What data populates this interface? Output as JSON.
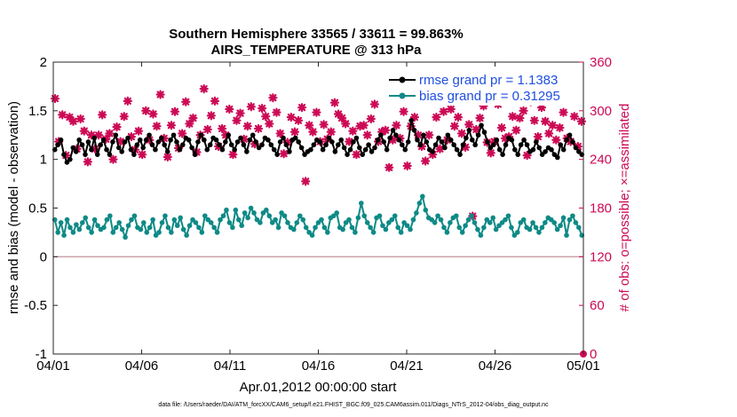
{
  "chart_data": {
    "type": "line",
    "title_line1": "Southern Hemisphere 33565 / 33611 = 99.863%",
    "title_line2": "AIRS_TEMPERATURE @ 313 hPa",
    "xlabel": "Apr.01,2012 00:00:00 start",
    "ylabel_left": "rmse and bias (model - observation)",
    "ylabel_right": "# of obs: o=possible; ×=assimilated",
    "footer": "data file: /Users/raeder/DAI/ATM_forcXX/CAM6_setup/f.e21.FHIST_BGC.f09_025.CAM6assim.011/Diags_NTrS_2012-04/obs_diag_output.nc",
    "xlim": [
      0,
      30
    ],
    "ylim_left": [
      -1,
      2
    ],
    "ylim_right": [
      0,
      360
    ],
    "x_ticks": [
      0,
      5,
      10,
      15,
      20,
      25,
      30
    ],
    "x_tick_labels": [
      "04/01",
      "04/06",
      "04/11",
      "04/16",
      "04/21",
      "04/26",
      "05/01"
    ],
    "y_ticks_left": [
      -1,
      -0.5,
      0,
      0.5,
      1,
      1.5,
      2
    ],
    "y_tick_labels_left": [
      "-1",
      "-0.5",
      "0",
      "0.5",
      "1",
      "1.5",
      "2"
    ],
    "y_ticks_right": [
      0,
      60,
      120,
      180,
      240,
      300,
      360
    ],
    "y_tick_labels_right": [
      "0",
      "60",
      "120",
      "180",
      "240",
      "300",
      "360"
    ],
    "zero_line": 0,
    "legend": [
      {
        "label": "rmse grand pr = 1.1383",
        "color": "#000000"
      },
      {
        "label": "bias grand pr = 0.31295",
        "color": "#0e8a86"
      }
    ],
    "colors": {
      "rmse": "#000000",
      "bias": "#0e8a86",
      "obs": "#cc0a55",
      "zero_line": "#c8a0a8"
    },
    "series": [
      {
        "name": "rmse",
        "values": [
          1.1,
          1.15,
          1.2,
          1.05,
          0.97,
          1.0,
          1.12,
          1.08,
          1.2,
          1.15,
          1.05,
          1.18,
          1.1,
          1.22,
          1.05,
          1.15,
          1.2,
          1.1,
          1.05,
          1.18,
          1.25,
          1.12,
          1.08,
          1.18,
          1.22,
          1.1,
          1.05,
          1.15,
          1.2,
          1.12,
          1.2,
          1.25,
          1.15,
          1.1,
          1.18,
          1.22,
          1.15,
          1.08,
          1.2,
          1.25,
          1.18,
          1.1,
          1.15,
          1.22,
          1.2,
          1.12,
          1.05,
          1.18,
          1.25,
          1.2,
          1.1,
          1.15,
          1.22,
          1.2,
          1.15,
          1.1,
          1.18,
          1.25,
          1.15,
          1.1,
          1.18,
          1.22,
          1.15,
          1.08,
          1.2,
          1.25,
          1.18,
          1.12,
          1.15,
          1.22,
          1.2,
          1.15,
          1.1,
          1.05,
          1.18,
          1.22,
          1.15,
          1.08,
          1.2,
          1.22,
          1.18,
          1.12,
          1.05,
          1.08,
          1.1,
          1.15,
          1.2,
          1.18,
          1.1,
          1.15,
          1.22,
          1.18,
          1.08,
          1.15,
          1.2,
          1.12,
          1.05,
          1.1,
          1.18,
          1.22,
          1.12,
          1.05,
          1.1,
          1.15,
          1.08,
          1.12,
          1.2,
          1.25,
          1.18,
          1.1,
          1.22,
          1.3,
          1.25,
          1.2,
          1.15,
          1.1,
          1.18,
          1.4,
          1.3,
          1.2,
          1.15,
          1.25,
          1.18,
          1.1,
          1.08,
          1.15,
          1.22,
          1.18,
          1.12,
          1.25,
          1.2,
          1.15,
          1.1,
          1.05,
          1.15,
          1.22,
          1.3,
          1.2,
          1.15,
          1.25,
          1.35,
          1.28,
          1.18,
          1.12,
          1.15,
          1.2,
          1.1,
          1.05,
          1.15,
          1.22,
          1.2,
          1.1,
          1.05,
          1.15,
          1.2,
          1.15,
          1.08,
          1.1,
          1.18,
          1.12,
          1.05,
          1.08,
          1.12,
          1.1,
          1.05,
          1.02,
          1.15,
          1.1,
          1.2,
          1.25,
          1.18,
          1.12,
          1.08,
          1.05
        ]
      },
      {
        "name": "bias",
        "values": [
          0.38,
          0.25,
          0.35,
          0.22,
          0.38,
          0.3,
          0.25,
          0.33,
          0.28,
          0.35,
          0.4,
          0.3,
          0.25,
          0.38,
          0.32,
          0.28,
          0.3,
          0.38,
          0.42,
          0.25,
          0.3,
          0.35,
          0.28,
          0.2,
          0.32,
          0.38,
          0.42,
          0.3,
          0.28,
          0.35,
          0.25,
          0.3,
          0.38,
          0.22,
          0.25,
          0.35,
          0.42,
          0.3,
          0.25,
          0.38,
          0.32,
          0.4,
          0.28,
          0.22,
          0.32,
          0.38,
          0.35,
          0.3,
          0.25,
          0.42,
          0.38,
          0.35,
          0.3,
          0.25,
          0.38,
          0.42,
          0.48,
          0.35,
          0.3,
          0.48,
          0.38,
          0.32,
          0.45,
          0.4,
          0.5,
          0.45,
          0.38,
          0.35,
          0.45,
          0.48,
          0.42,
          0.35,
          0.38,
          0.3,
          0.45,
          0.42,
          0.35,
          0.3,
          0.28,
          0.35,
          0.42,
          0.38,
          0.3,
          0.25,
          0.22,
          0.3,
          0.35,
          0.38,
          0.3,
          0.25,
          0.4,
          0.42,
          0.45,
          0.3,
          0.28,
          0.35,
          0.38,
          0.3,
          0.25,
          0.4,
          0.55,
          0.42,
          0.35,
          0.3,
          0.25,
          0.4,
          0.42,
          0.32,
          0.28,
          0.35,
          0.38,
          0.42,
          0.3,
          0.25,
          0.35,
          0.32,
          0.28,
          0.38,
          0.45,
          0.55,
          0.62,
          0.48,
          0.4,
          0.38,
          0.35,
          0.42,
          0.38,
          0.3,
          0.25,
          0.35,
          0.4,
          0.42,
          0.3,
          0.25,
          0.32,
          0.38,
          0.42,
          0.35,
          0.28,
          0.22,
          0.3,
          0.38,
          0.35,
          0.4,
          0.28,
          0.32,
          0.35,
          0.38,
          0.42,
          0.3,
          0.22,
          0.25,
          0.35,
          0.38,
          0.3,
          0.28,
          0.35,
          0.3,
          0.25,
          0.3,
          0.35,
          0.4,
          0.38,
          0.35,
          0.28,
          0.32,
          0.4,
          0.22,
          0.38,
          0.42,
          0.35,
          0.3,
          0.22
        ]
      },
      {
        "name": "obs_possible",
        "axis": "right",
        "values": [
          315,
          262,
          295,
          245,
          292,
          287,
          253,
          290,
          275,
          237,
          270,
          253,
          270,
          295,
          265,
          272,
          240,
          280,
          262,
          293,
          312,
          268,
          252,
          275,
          246,
          300,
          264,
          296,
          281,
          320,
          266,
          243,
          282,
          299,
          254,
          272,
          311,
          284,
          291,
          249,
          270,
          327,
          277,
          294,
          312,
          256,
          278,
          270,
          302,
          246,
          288,
          297,
          265,
          281,
          305,
          259,
          278,
          303,
          293,
          284,
          316,
          298,
          272,
          247,
          261,
          292,
          274,
          288,
          304,
          213,
          282,
          274,
          298,
          262,
          283,
          265,
          274,
          310,
          296,
          291,
          284,
          262,
          275,
          246,
          281,
          282,
          270,
          290,
          308,
          262,
          274,
          276,
          230,
          264,
          282,
          266,
          299,
          232,
          281,
          292,
          270,
          256,
          238,
          270,
          246,
          292,
          253,
          299,
          264,
          302,
          281,
          292,
          272,
          255,
          283,
          170,
          277,
          291,
          306,
          261,
          248,
          262,
          308,
          279,
          266,
          268,
          293,
          276,
          291,
          300,
          245,
          311,
          288,
          268,
          304,
          287,
          272,
          282,
          264,
          279,
          298,
          266,
          262,
          293,
          256,
          287
        ]
      }
    ]
  }
}
